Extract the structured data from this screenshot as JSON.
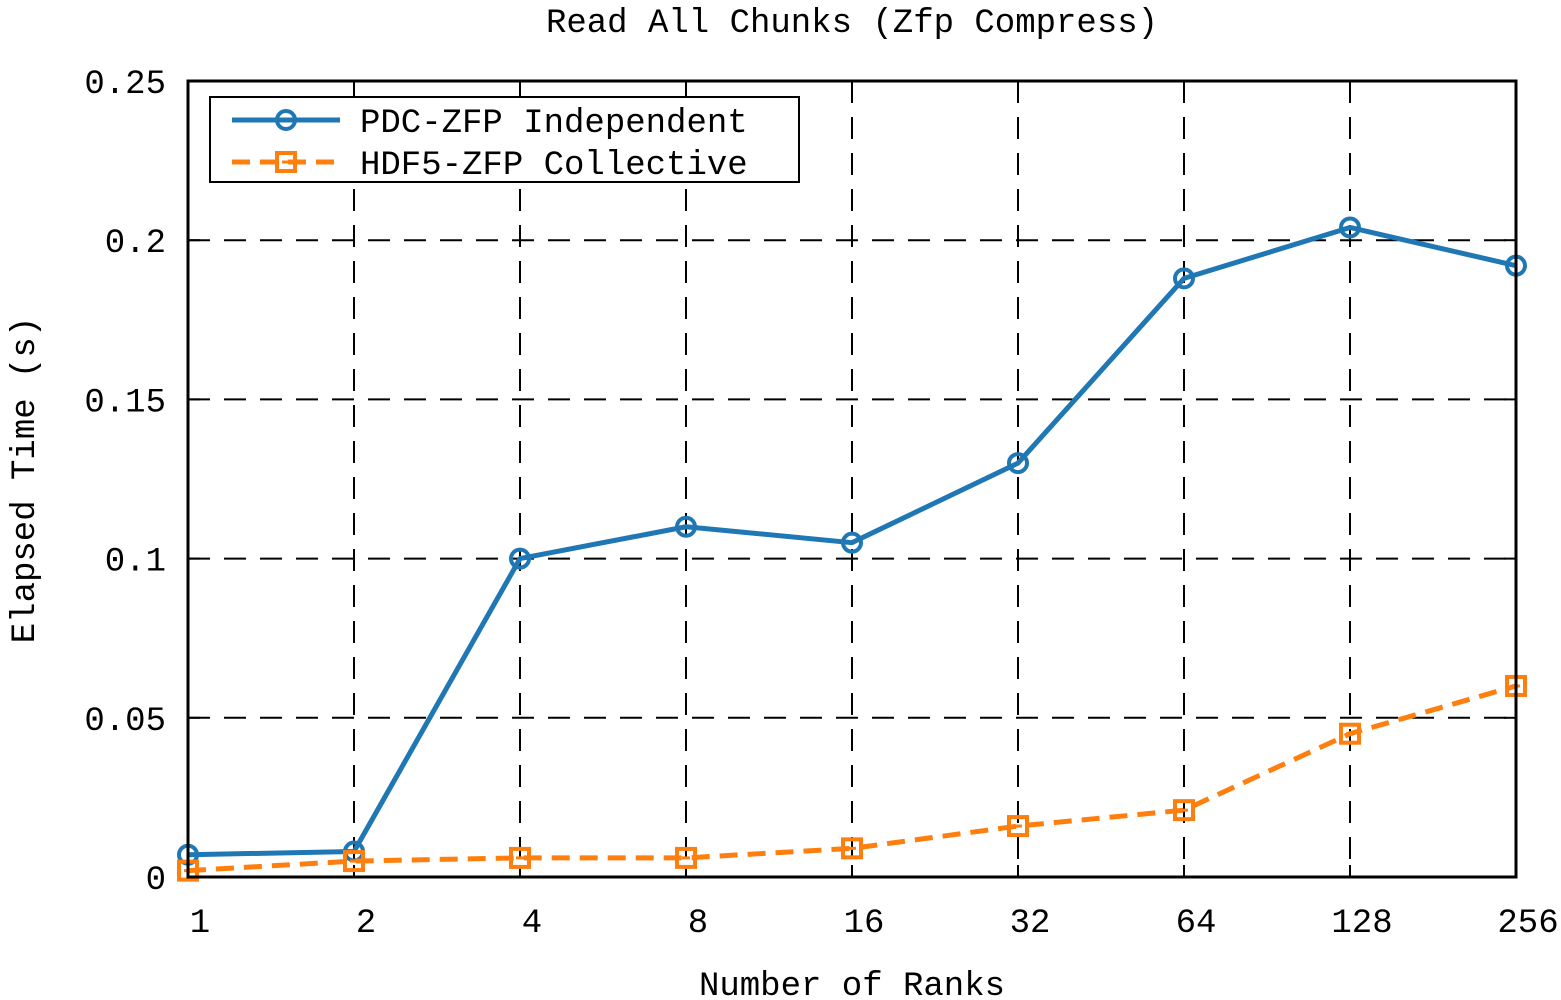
{
  "chart_data": {
    "type": "line",
    "title": "Read All Chunks (Zfp Compress)",
    "xlabel": "Number of Ranks",
    "ylabel": "Elapsed Time (s)",
    "categories": [
      "1",
      "2",
      "4",
      "8",
      "16",
      "32",
      "64",
      "128",
      "256"
    ],
    "ylim": [
      0,
      0.25
    ],
    "yticks": [
      0,
      0.05,
      0.1,
      0.15,
      0.2,
      0.25
    ],
    "ytick_labels": [
      "0",
      "0.05",
      "0.1",
      "0.15",
      "0.2",
      "0.25"
    ],
    "grid": true,
    "legend_position": "top-left",
    "series": [
      {
        "name": "PDC-ZFP Independent",
        "color": "#1f77b4",
        "line": "solid",
        "marker": "circle",
        "values": [
          0.007,
          0.008,
          0.1,
          0.11,
          0.105,
          0.13,
          0.188,
          0.204,
          0.192
        ]
      },
      {
        "name": "HDF5-ZFP Collective",
        "color": "#ff7f0e",
        "line": "dashed",
        "marker": "square",
        "values": [
          0.002,
          0.005,
          0.006,
          0.006,
          0.009,
          0.016,
          0.021,
          0.045,
          0.06
        ]
      }
    ]
  }
}
